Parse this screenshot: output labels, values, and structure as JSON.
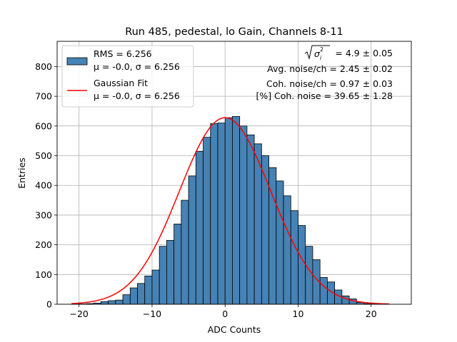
{
  "chart_data": {
    "type": "bar",
    "title": "Run 485, pedestal, lo Gain, Channels 8-11",
    "xlabel": "ADC Counts",
    "ylabel": "Entries",
    "xlim": [
      -23.0,
      25.5
    ],
    "ylim": [
      0,
      885
    ],
    "xticks": [
      -20,
      -10,
      0,
      10,
      20
    ],
    "xtick_labels": [
      "−20",
      "−10",
      "0",
      "10",
      "20"
    ],
    "yticks": [
      0,
      100,
      200,
      300,
      400,
      500,
      600,
      700,
      800
    ],
    "grid": true,
    "bin_width": 1,
    "bin_edges_start": -21,
    "counts": [
      2,
      1,
      2,
      4,
      9,
      12,
      14,
      32,
      55,
      70,
      95,
      115,
      195,
      215,
      270,
      350,
      432,
      515,
      562,
      608,
      610,
      628,
      632,
      600,
      570,
      540,
      500,
      460,
      415,
      365,
      315,
      265,
      195,
      150,
      90,
      75,
      48,
      28,
      18,
      6,
      2,
      1,
      1
    ],
    "fit": {
      "type": "gaussian",
      "mean": 0.0,
      "sigma": 6.256,
      "amplitude": 628,
      "range": [
        -21.0,
        22.5
      ]
    },
    "legend_position": "upper-left",
    "legend": [
      {
        "kind": "patch",
        "line1": "RMS = 6.256",
        "line2": "μ = -0.0, σ = 6.256"
      },
      {
        "kind": "line",
        "line1": "Gaussian Fit",
        "line2": "μ = -0.0, σ = 6.256"
      }
    ],
    "annotations": [
      "= 4.9 ± 0.05",
      "Avg. noise/ch = 2.45 ± 0.02",
      "Coh. noise/ch = 0.97 ± 0.03",
      "[%] Coh. noise = 39.65 ± 1.28"
    ],
    "sqrt_symbol_label": "σ",
    "sqrt_sub": "i",
    "sqrt_sup": "2"
  },
  "colors": {
    "bar_fill": "#4682b4",
    "bar_edge": "#000000",
    "fit_line": "#ff0000",
    "grid": "#b0b0b0"
  }
}
